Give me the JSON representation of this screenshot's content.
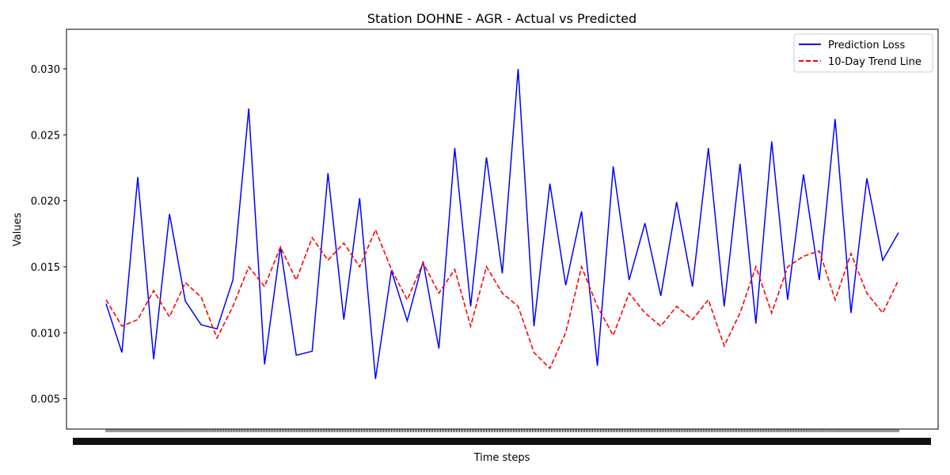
{
  "chart_data": {
    "type": "line",
    "title": "Station DOHNE - AGR - Actual vs Predicted",
    "xlabel": "Time steps",
    "ylabel": "Values",
    "xlim": [
      0,
      500
    ],
    "ylim": [
      0.0027,
      0.033
    ],
    "grid": false,
    "legend_position": "top-right",
    "y_ticks": [
      0.005,
      0.01,
      0.015,
      0.02,
      0.025,
      0.03
    ],
    "y_tick_labels": [
      "0.005",
      "0.010",
      "0.015",
      "0.020",
      "0.025",
      "0.030"
    ],
    "series": [
      {
        "name": "Prediction Loss",
        "color": "#0000ff",
        "style": "solid",
        "x": [
          0,
          10,
          20,
          30,
          40,
          50,
          60,
          70,
          80,
          90,
          100,
          110,
          120,
          130,
          140,
          150,
          160,
          170,
          180,
          190,
          200,
          210,
          220,
          230,
          240,
          250,
          260,
          270,
          280,
          290,
          300,
          310,
          320,
          330,
          340,
          350,
          360,
          370,
          380,
          390,
          400,
          410,
          420,
          430,
          440,
          450,
          460,
          470,
          480,
          490,
          500
        ],
        "y": [
          0.0122,
          0.0085,
          0.0218,
          0.008,
          0.019,
          0.0124,
          0.0106,
          0.0103,
          0.014,
          0.027,
          0.0076,
          0.0165,
          0.0083,
          0.0086,
          0.0221,
          0.011,
          0.0202,
          0.0065,
          0.0147,
          0.0109,
          0.0154,
          0.0088,
          0.024,
          0.012,
          0.0233,
          0.0145,
          0.03,
          0.0105,
          0.0213,
          0.0136,
          0.0192,
          0.0075,
          0.0226,
          0.014,
          0.0183,
          0.0128,
          0.0199,
          0.0135,
          0.024,
          0.012,
          0.0228,
          0.0107,
          0.0245,
          0.0125,
          0.022,
          0.014,
          0.0262,
          0.0115,
          0.0217,
          0.0155,
          0.0176
        ]
      },
      {
        "name": "10-Day Trend Line",
        "color": "#ff0000",
        "style": "dashed",
        "x": [
          0,
          10,
          20,
          30,
          40,
          50,
          60,
          70,
          80,
          90,
          100,
          110,
          120,
          130,
          140,
          150,
          160,
          170,
          180,
          190,
          200,
          210,
          220,
          230,
          240,
          250,
          260,
          270,
          280,
          290,
          300,
          310,
          320,
          330,
          340,
          350,
          360,
          370,
          380,
          390,
          400,
          410,
          420,
          430,
          440,
          450,
          460,
          470,
          480,
          490,
          500
        ],
        "y": [
          0.0125,
          0.0105,
          0.011,
          0.0132,
          0.0112,
          0.0138,
          0.0127,
          0.0096,
          0.012,
          0.015,
          0.0135,
          0.0165,
          0.014,
          0.0172,
          0.0155,
          0.0168,
          0.015,
          0.0178,
          0.0148,
          0.0125,
          0.0153,
          0.013,
          0.0148,
          0.0105,
          0.015,
          0.013,
          0.012,
          0.0085,
          0.0073,
          0.01,
          0.015,
          0.012,
          0.0098,
          0.013,
          0.0115,
          0.0105,
          0.012,
          0.011,
          0.0125,
          0.009,
          0.0115,
          0.015,
          0.0115,
          0.015,
          0.0158,
          0.0162,
          0.0125,
          0.016,
          0.013,
          0.0115,
          0.014
        ]
      }
    ]
  }
}
